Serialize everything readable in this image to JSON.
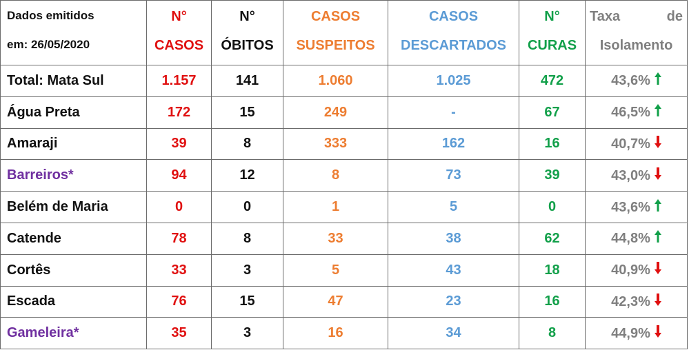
{
  "header": {
    "emitted_line1": "Dados emitidos",
    "emitted_line2": "em: 26/05/2020",
    "casos_l1": "N°",
    "casos_l2": "CASOS",
    "obitos_l1": "N°",
    "obitos_l2": "ÓBITOS",
    "suspeitos_l1": "CASOS",
    "suspeitos_l2": "SUSPEITOS",
    "descartados_l1": "CASOS",
    "descartados_l2": "DESCARTADOS",
    "curas_l1": "N°",
    "curas_l2": "CURAS",
    "taxa_w1": "Taxa",
    "taxa_w2": "de",
    "taxa_l2": "Isolamento"
  },
  "rows": [
    {
      "name": "Total: Mata Sul",
      "casos": "1.157",
      "obitos": "141",
      "suspeitos": "1.060",
      "descartados": "1.025",
      "curas": "472",
      "taxa": "43,6%",
      "trend": "up",
      "name_color": "black"
    },
    {
      "name": "Água Preta",
      "casos": "172",
      "obitos": "15",
      "suspeitos": "249",
      "descartados": "-",
      "curas": "67",
      "taxa": "46,5%",
      "trend": "up",
      "name_color": "black"
    },
    {
      "name": "Amaraji",
      "casos": "39",
      "obitos": "8",
      "suspeitos": "333",
      "descartados": "162",
      "curas": "16",
      "taxa": "40,7%",
      "trend": "down",
      "name_color": "black"
    },
    {
      "name": "Barreiros*",
      "casos": "94",
      "obitos": "12",
      "suspeitos": "8",
      "descartados": "73",
      "curas": "39",
      "taxa": "43,0%",
      "trend": "down",
      "name_color": "purple"
    },
    {
      "name": "Belém de Maria",
      "casos": "0",
      "obitos": "0",
      "suspeitos": "1",
      "descartados": "5",
      "curas": "0",
      "taxa": "43,6%",
      "trend": "up",
      "name_color": "black"
    },
    {
      "name": "Catende",
      "casos": "78",
      "obitos": "8",
      "suspeitos": "33",
      "descartados": "38",
      "curas": "62",
      "taxa": "44,8%",
      "trend": "up",
      "name_color": "black"
    },
    {
      "name": "Cortês",
      "casos": "33",
      "obitos": "3",
      "suspeitos": "5",
      "descartados": "43",
      "curas": "18",
      "taxa": "40,9%",
      "trend": "down",
      "name_color": "black"
    },
    {
      "name": "Escada",
      "casos": "76",
      "obitos": "15",
      "suspeitos": "47",
      "descartados": "23",
      "curas": "16",
      "taxa": "42,3%",
      "trend": "down",
      "name_color": "black"
    },
    {
      "name": "Gameleira*",
      "casos": "35",
      "obitos": "3",
      "suspeitos": "16",
      "descartados": "34",
      "curas": "8",
      "taxa": "44,9%",
      "trend": "down",
      "name_color": "purple"
    }
  ],
  "colors": {
    "casos": "#e01010",
    "obitos": "#111111",
    "suspeitos": "#ed7d31",
    "descartados": "#5b9bd5",
    "curas": "#12a04a",
    "taxa": "#7f7f7f",
    "highlight_city": "#7030a0",
    "trend_up": "#12a04a",
    "trend_down": "#e01010"
  },
  "icons": {
    "up": "arrow-up-icon",
    "down": "arrow-down-icon"
  }
}
